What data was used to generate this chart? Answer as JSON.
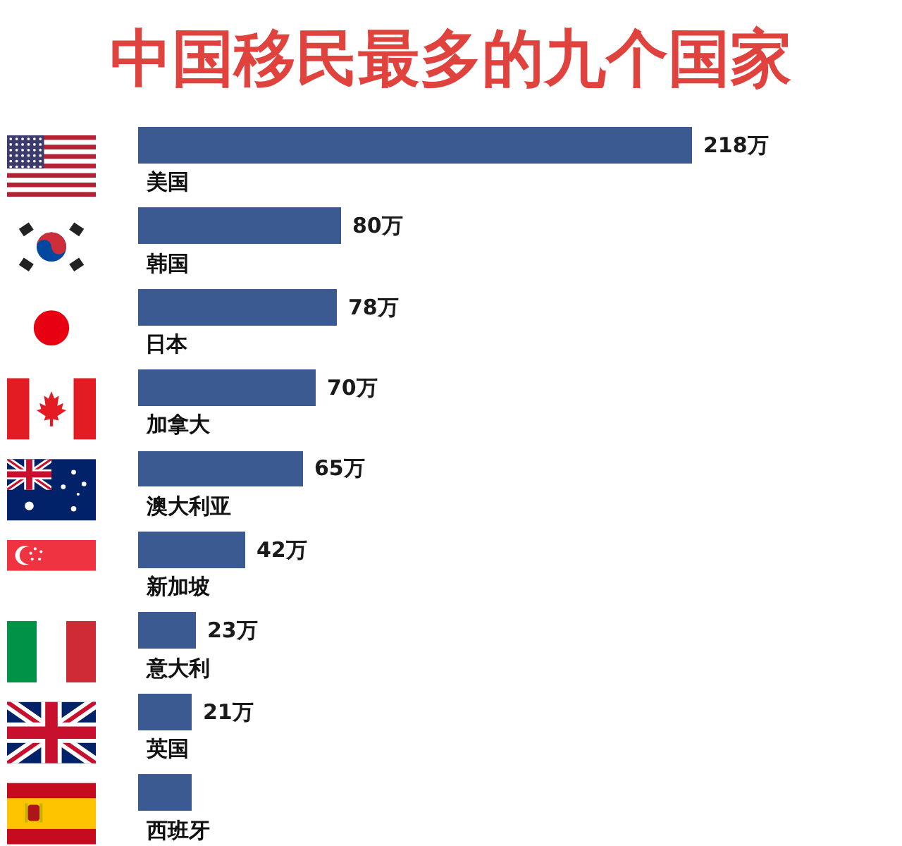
{
  "chart_data": {
    "type": "bar",
    "orientation": "horizontal",
    "title": "中国移民最多的九个国家",
    "categories": [
      "美国",
      "韩国",
      "日本",
      "加拿大",
      "澳大利亚",
      "新加坡",
      "意大利",
      "英国",
      "西班牙"
    ],
    "values": [
      218,
      80,
      78,
      70,
      65,
      42,
      23,
      21,
      21
    ],
    "value_labels": [
      "218万",
      "80万",
      "78万",
      "70万",
      "65万",
      "42万",
      "23万",
      "21万",
      null
    ],
    "color": "#3a5a91"
  }
}
